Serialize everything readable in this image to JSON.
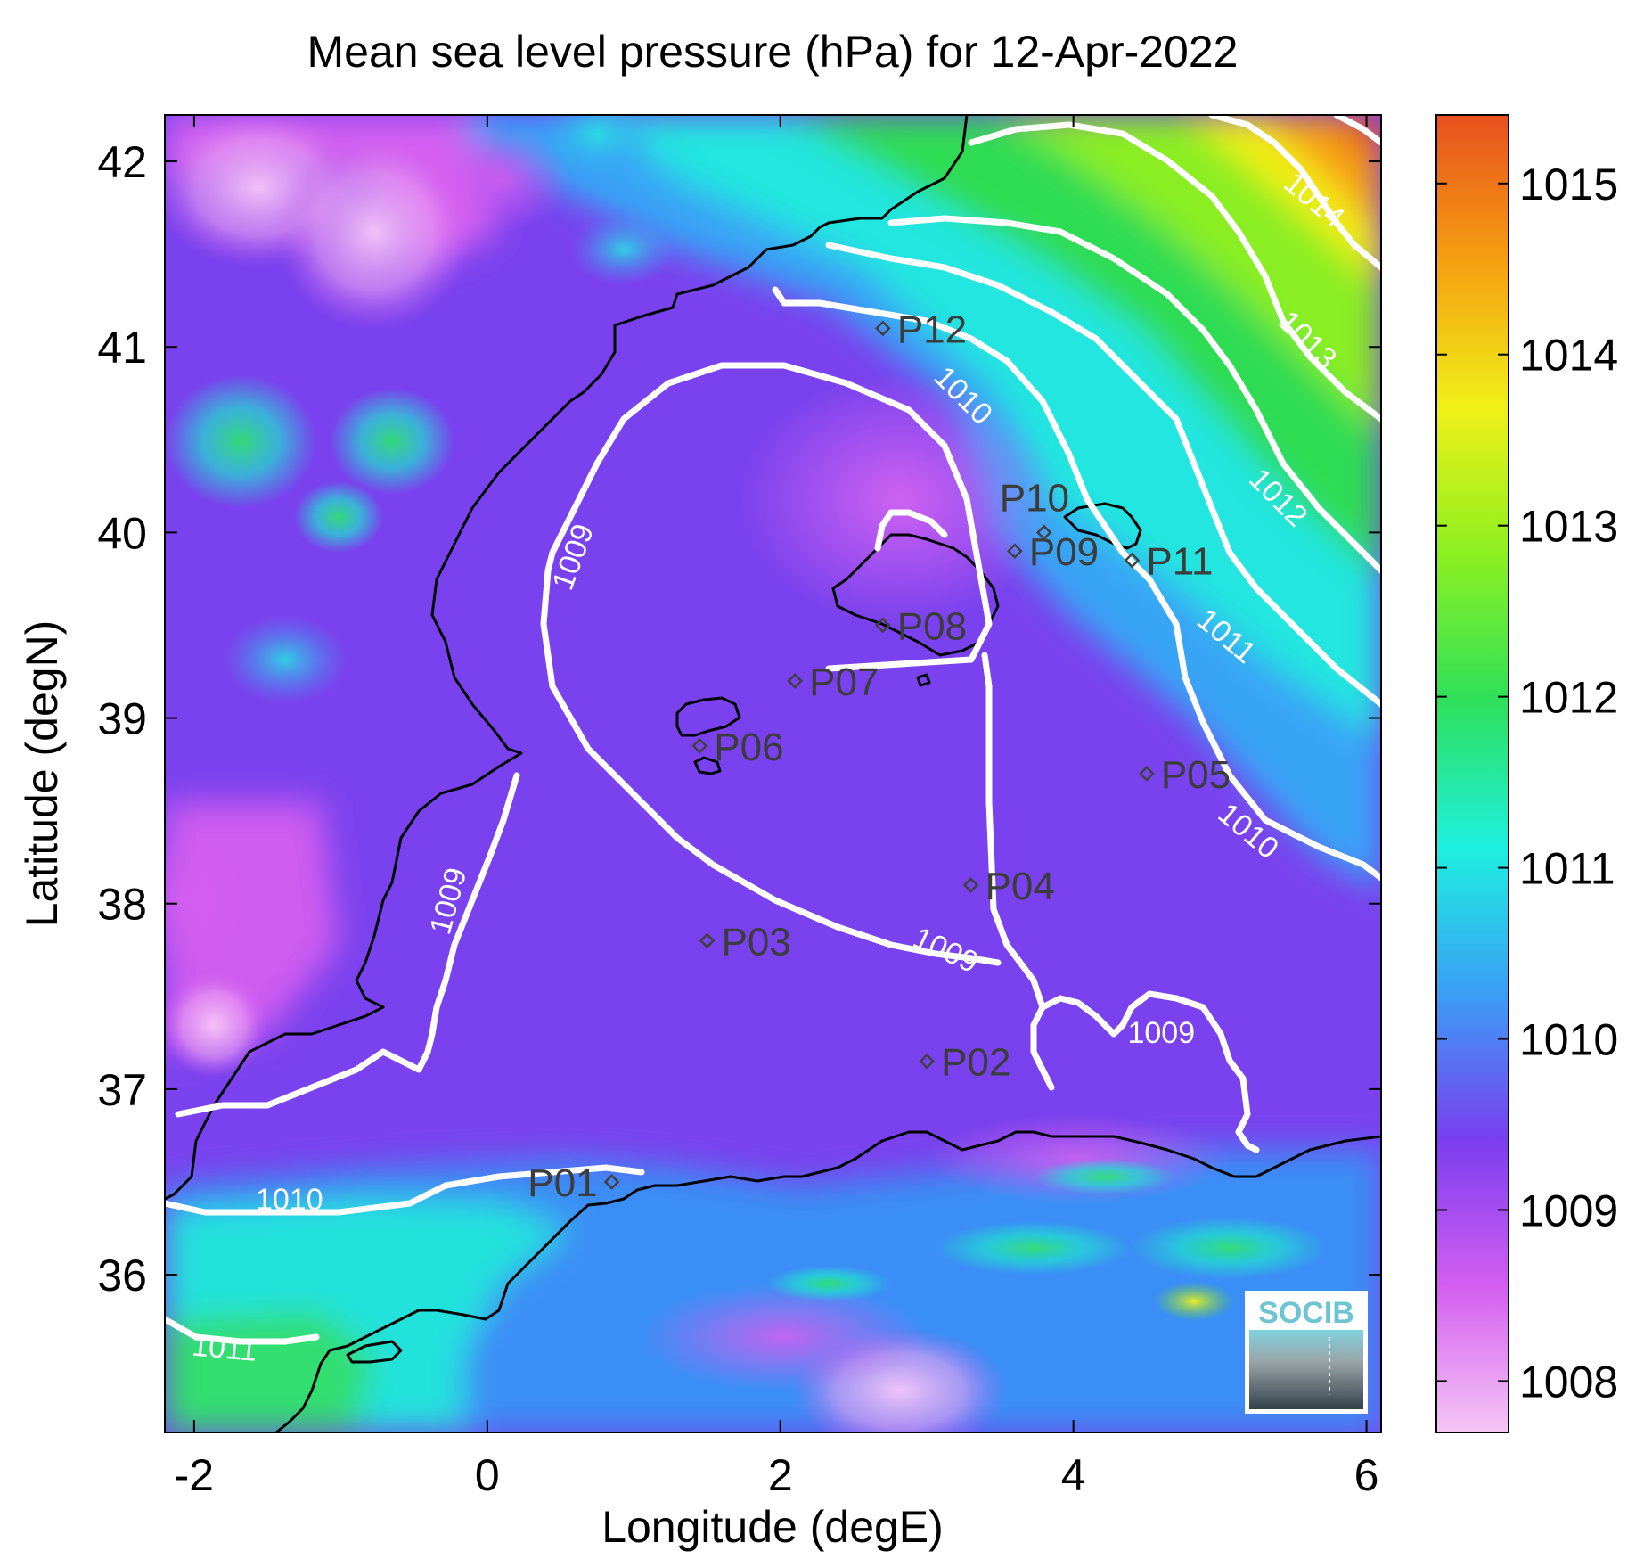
{
  "chart_data": {
    "type": "heatmap",
    "title": "Mean sea level pressure (hPa) for 12-Apr-2022",
    "xlabel": "Longitude (degE)",
    "ylabel": "Latitude (degN)",
    "xlim": [
      -2.2,
      6.1
    ],
    "ylim": [
      35.15,
      42.25
    ],
    "x_ticks": [
      "-2",
      "0",
      "2",
      "4",
      "6"
    ],
    "y_ticks": [
      "36",
      "37",
      "38",
      "39",
      "40",
      "41",
      "42"
    ],
    "colorbar": {
      "range": [
        1007.7,
        1015.4
      ],
      "ticks": [
        "1008",
        "1009",
        "1010",
        "1011",
        "1012",
        "1013",
        "1014",
        "1015"
      ],
      "colors": [
        "#f5c6f5",
        "#d35ef0",
        "#7b3ef0",
        "#3a9ef5",
        "#1ef0e0",
        "#2ee05a",
        "#8cf020",
        "#f0f018",
        "#f5a010",
        "#e8501e"
      ]
    },
    "contour_labels": [
      {
        "text": "1009",
        "lon": 0.65,
        "lat": 39.85
      },
      {
        "text": "1009",
        "lon": -0.2,
        "lat": 38.0
      },
      {
        "text": "1009",
        "lon": 3.1,
        "lat": 37.7
      },
      {
        "text": "1009",
        "lon": 4.6,
        "lat": 37.25
      },
      {
        "text": "1010",
        "lon": 3.2,
        "lat": 40.7
      },
      {
        "text": "1010",
        "lon": 5.15,
        "lat": 38.35
      },
      {
        "text": "1010",
        "lon": -1.35,
        "lat": 36.35
      },
      {
        "text": "1011",
        "lon": 5.0,
        "lat": 39.4
      },
      {
        "text": "1011",
        "lon": -1.8,
        "lat": 35.55
      },
      {
        "text": "1012",
        "lon": 5.35,
        "lat": 40.15
      },
      {
        "text": "1013",
        "lon": 5.55,
        "lat": 41.0
      },
      {
        "text": "1014",
        "lon": 5.6,
        "lat": 41.75
      }
    ],
    "stations": [
      {
        "name": "P01",
        "lon": 0.85,
        "lat": 36.5
      },
      {
        "name": "P02",
        "lon": 3.0,
        "lat": 37.15
      },
      {
        "name": "P03",
        "lon": 1.5,
        "lat": 37.8
      },
      {
        "name": "P04",
        "lon": 3.3,
        "lat": 38.1
      },
      {
        "name": "P05",
        "lon": 4.5,
        "lat": 38.7
      },
      {
        "name": "P06",
        "lon": 1.45,
        "lat": 38.85
      },
      {
        "name": "P07",
        "lon": 2.1,
        "lat": 39.2
      },
      {
        "name": "P08",
        "lon": 2.7,
        "lat": 39.5
      },
      {
        "name": "P09",
        "lon": 3.6,
        "lat": 39.9
      },
      {
        "name": "P10",
        "lon": 3.8,
        "lat": 40.0
      },
      {
        "name": "P11",
        "lon": 4.4,
        "lat": 39.85
      },
      {
        "name": "P12",
        "lon": 2.7,
        "lat": 41.1
      }
    ]
  },
  "logo": {
    "text": "SOCIB"
  }
}
